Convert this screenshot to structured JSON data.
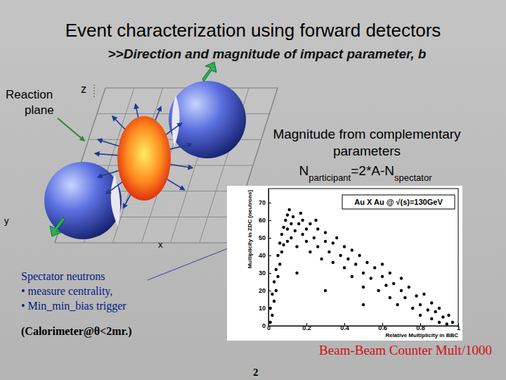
{
  "slide": {
    "title": "Event characterization using forward detectors",
    "subtitle": ">>Direction and magnitude of impact parameter, b",
    "reaction_plane": [
      "Reaction",
      "plane"
    ],
    "axes": {
      "z": "z",
      "y": "y",
      "x": "x"
    },
    "magnitude": {
      "lines": [
        "Magnitude from complementary",
        "parameters"
      ],
      "formula": [
        {
          "text": "N"
        },
        {
          "text": "participant",
          "sub": true
        },
        {
          "text": "=2*A-N"
        },
        {
          "text": "spectator",
          "sub": true
        }
      ]
    },
    "spectator": [
      "Spectator neutrons",
      "• measure centrality,",
      "• Min_min_bias trigger"
    ],
    "calorimeter": "(Calorimeter@θ<2mr.)",
    "caption": "Beam-Beam Counter Mult/1000",
    "page": 2
  },
  "chart_data": {
    "type": "scatter",
    "annotations": [
      "Au X Au @ √(s)=130GeV"
    ],
    "xlabel": "Relative Multiplicity in BBC",
    "ylabel": "Multiplicity in ZDC [neutrons]",
    "x": [
      0.01,
      0.01,
      0.02,
      0.02,
      0.03,
      0.03,
      0.04,
      0.04,
      0.05,
      0.05,
      0.06,
      0.06,
      0.07,
      0.07,
      0.08,
      0.08,
      0.09,
      0.1,
      0.1,
      0.1,
      0.12,
      0.12,
      0.13,
      0.14,
      0.15,
      0.16,
      0.18,
      0.18,
      0.2,
      0.2,
      0.22,
      0.22,
      0.24,
      0.26,
      0.26,
      0.28,
      0.3,
      0.3,
      0.32,
      0.34,
      0.34,
      0.36,
      0.38,
      0.4,
      0.4,
      0.42,
      0.44,
      0.44,
      0.46,
      0.48,
      0.5,
      0.5,
      0.52,
      0.54,
      0.56,
      0.58,
      0.6,
      0.6,
      0.62,
      0.64,
      0.64,
      0.66,
      0.68,
      0.7,
      0.7,
      0.72,
      0.74,
      0.76,
      0.78,
      0.8,
      0.8,
      0.82,
      0.84,
      0.86,
      0.86,
      0.88,
      0.9,
      0.9,
      0.92,
      0.94,
      0.95,
      0.97,
      0.15,
      0.3,
      0.5,
      0.11,
      0.17,
      0.25
    ],
    "values": [
      2,
      10,
      18,
      6,
      25,
      14,
      32,
      20,
      40,
      28,
      47,
      35,
      52,
      42,
      56,
      46,
      60,
      55,
      48,
      63,
      58,
      50,
      62,
      54,
      45,
      58,
      52,
      60,
      48,
      55,
      42,
      58,
      50,
      45,
      55,
      38,
      48,
      53,
      42,
      36,
      47,
      50,
      40,
      33,
      45,
      38,
      28,
      43,
      35,
      40,
      30,
      22,
      36,
      27,
      33,
      20,
      28,
      35,
      23,
      16,
      30,
      24,
      12,
      20,
      27,
      16,
      22,
      10,
      17,
      12,
      6,
      18,
      9,
      4,
      13,
      8,
      2,
      10,
      5,
      1,
      6,
      2,
      30,
      20,
      12,
      66,
      64,
      60
    ],
    "xlim": [
      0,
      1
    ],
    "xticks": [
      0,
      0.2,
      0.4,
      0.6,
      0.8,
      1
    ],
    "ylim": [
      0,
      78
    ],
    "yticks": [
      0,
      10,
      20,
      30,
      40,
      50,
      60,
      70
    ],
    "color": "#000000",
    "marker": "dot"
  }
}
